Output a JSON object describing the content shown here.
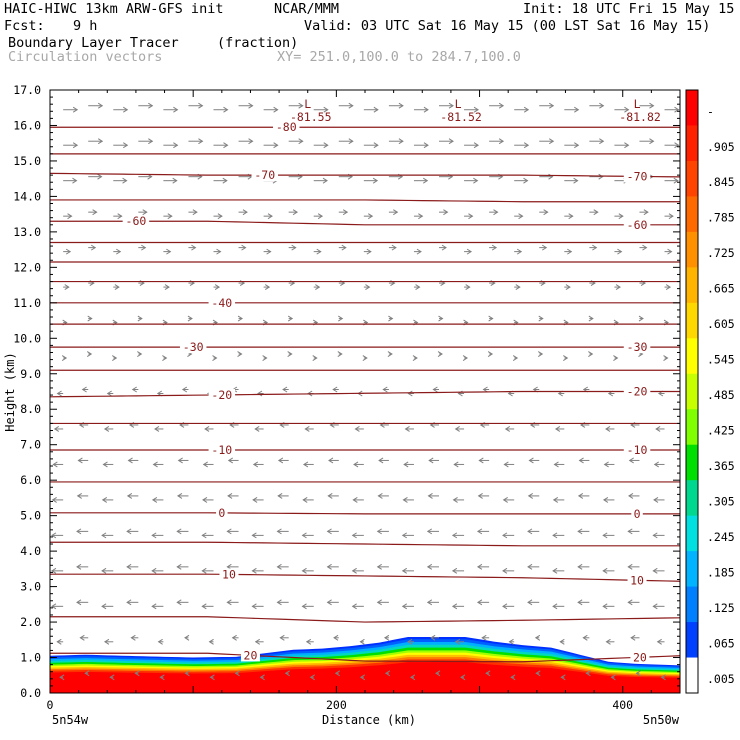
{
  "header": {
    "model": "HAIC-HIWC 13km ARW-GFS init",
    "org": "NCAR/MMM",
    "init": "Init: 18 UTC Fri 15 May 15",
    "fcst_label": "Fcst:",
    "fcst_value": "9 h",
    "valid": "Valid: 03 UTC Sat 16 May 15 (00 LST Sat 16 May 15)",
    "field": "Boundary Layer Tracer",
    "field_unit": "(fraction)",
    "vectors": "Circulation vectors",
    "xy": "XY= 251.0,100.0 to 284.7,100.0"
  },
  "chart_data": {
    "type": "heatmap",
    "ylabel": "Height (km)",
    "xlabel": "Distance (km)",
    "xlim": [
      0,
      440
    ],
    "ylim": [
      0,
      17
    ],
    "y_ticks": [
      "0.0",
      "1.0",
      "2.0",
      "3.0",
      "4.0",
      "5.0",
      "6.0",
      "7.0",
      "8.0",
      "9.0",
      "10.0",
      "11.0",
      "12.0",
      "13.0",
      "14.0",
      "15.0",
      "16.0",
      "17.0"
    ],
    "x_ticks": [
      {
        "value": 0,
        "label": "0"
      },
      {
        "value": 200,
        "label": "200"
      },
      {
        "value": 400,
        "label": "400"
      }
    ],
    "x_end_labels": {
      "left": "5n54w",
      "right": "5n50w"
    },
    "tracer_top_km": [
      [
        0,
        1.05
      ],
      [
        25,
        1.08
      ],
      [
        50,
        1.05
      ],
      [
        100,
        1.0
      ],
      [
        130,
        1.02
      ],
      [
        150,
        1.12
      ],
      [
        170,
        1.22
      ],
      [
        190,
        1.25
      ],
      [
        210,
        1.32
      ],
      [
        230,
        1.42
      ],
      [
        250,
        1.58
      ],
      [
        290,
        1.58
      ],
      [
        310,
        1.45
      ],
      [
        330,
        1.35
      ],
      [
        350,
        1.28
      ],
      [
        370,
        1.08
      ],
      [
        390,
        0.88
      ],
      [
        410,
        0.82
      ],
      [
        440,
        0.78
      ]
    ],
    "temperature_contours": [
      {
        "value": 20,
        "label": "20",
        "y": [
          1.12,
          1.12,
          0.9,
          0.88,
          1.05
        ]
      },
      {
        "value": 15,
        "label": "",
        "y": [
          2.15,
          2.15,
          2.0,
          2.05,
          2.12
        ]
      },
      {
        "value": 10,
        "label": "10",
        "y": [
          3.35,
          3.35,
          3.3,
          3.25,
          3.15
        ]
      },
      {
        "value": 5,
        "label": "",
        "y": [
          4.25,
          4.25,
          4.2,
          4.15,
          4.15
        ]
      },
      {
        "value": 0,
        "label": "0",
        "y": [
          5.08,
          5.08,
          5.05,
          5.05,
          5.05
        ]
      },
      {
        "value": -5,
        "label": "",
        "y": [
          5.95,
          5.95,
          5.95,
          5.95,
          5.95
        ]
      },
      {
        "value": -10,
        "label": "-10",
        "y": [
          6.85,
          6.85,
          6.85,
          6.85,
          6.85
        ]
      },
      {
        "value": -15,
        "label": "",
        "y": [
          7.6,
          7.6,
          7.6,
          7.6,
          7.6
        ]
      },
      {
        "value": -20,
        "label": "-20",
        "y": [
          8.35,
          8.4,
          8.45,
          8.5,
          8.5
        ]
      },
      {
        "value": -25,
        "label": "",
        "y": [
          9.1,
          9.1,
          9.1,
          9.1,
          9.1
        ]
      },
      {
        "value": -30,
        "label": "-30",
        "y": [
          9.75,
          9.75,
          9.75,
          9.75,
          9.75
        ]
      },
      {
        "value": -35,
        "label": "",
        "y": [
          10.4,
          10.4,
          10.4,
          10.4,
          10.4
        ]
      },
      {
        "value": -40,
        "label": "-40",
        "y": [
          11.0,
          11.0,
          11.0,
          11.0,
          11.0
        ]
      },
      {
        "value": -45,
        "label": "",
        "y": [
          11.6,
          11.6,
          11.6,
          11.6,
          11.6
        ]
      },
      {
        "value": -50,
        "label": "",
        "y": [
          12.15,
          12.15,
          12.15,
          12.15,
          12.15
        ]
      },
      {
        "value": -55,
        "label": "",
        "y": [
          12.7,
          12.7,
          12.7,
          12.7,
          12.7
        ]
      },
      {
        "value": -60,
        "label": "-60",
        "y": [
          13.3,
          13.3,
          13.2,
          13.2,
          13.2
        ]
      },
      {
        "value": -65,
        "label": "",
        "y": [
          13.9,
          13.9,
          13.9,
          13.85,
          13.85
        ]
      },
      {
        "value": -70,
        "label": "-70",
        "y": [
          14.65,
          14.6,
          14.6,
          14.6,
          14.55
        ]
      },
      {
        "value": -75,
        "label": "",
        "y": [
          15.2,
          15.2,
          15.2,
          15.2,
          15.2
        ]
      },
      {
        "value": -80,
        "label": "-80",
        "y": [
          15.95,
          15.95,
          15.95,
          15.95,
          15.95
        ]
      }
    ],
    "contour_x": [
      0,
      110,
      220,
      330,
      440
    ],
    "contour_label_x": {
      "20": [
        140,
        412
      ],
      "10": [
        125,
        410
      ],
      "0": [
        120,
        410
      ],
      "-10": [
        120,
        410
      ],
      "-20": [
        120,
        410
      ],
      "-30": [
        100,
        410
      ],
      "-40": [
        120
      ],
      "-60": [
        60,
        410
      ],
      "-70": [
        150,
        410
      ],
      "-80": [
        165
      ]
    },
    "minima": [
      {
        "marker": "L",
        "label": "-81.55",
        "x": 180,
        "y": 16.6
      },
      {
        "marker": "L",
        "label": "-81.52",
        "x": 285,
        "y": 16.6
      },
      {
        "marker": "L",
        "label": "-81.82",
        "x": 410,
        "y": 16.6
      }
    ],
    "colorbar": {
      "labels": [
        "-",
        ".905",
        ".845",
        ".785",
        ".725",
        ".665",
        ".605",
        ".545",
        ".485",
        ".425",
        ".365",
        ".305",
        ".245",
        ".185",
        ".125",
        ".065",
        ".005"
      ],
      "colors": [
        "#ff0000",
        "#ff2200",
        "#ff4400",
        "#ff6a00",
        "#ff9000",
        "#ffb400",
        "#ffd800",
        "#ffff00",
        "#c8ff00",
        "#7fff00",
        "#00e000",
        "#00d890",
        "#00e0e0",
        "#00b4ff",
        "#0080ff",
        "#0040ff",
        "#ffffff"
      ]
    },
    "wind_profile": [
      {
        "z": 16.5,
        "u": 1.0
      },
      {
        "z": 15.5,
        "u": 1.0
      },
      {
        "z": 14.5,
        "u": 0.95
      },
      {
        "z": 13.5,
        "u": 0.6
      },
      {
        "z": 12.5,
        "u": 0.5
      },
      {
        "z": 11.5,
        "u": 0.4
      },
      {
        "z": 10.5,
        "u": 0.25
      },
      {
        "z": 9.5,
        "u": 0.1
      },
      {
        "z": 8.5,
        "u": -0.4
      },
      {
        "z": 7.5,
        "u": -0.6
      },
      {
        "z": 6.5,
        "u": -0.7
      },
      {
        "z": 5.5,
        "u": -0.75
      },
      {
        "z": 4.5,
        "u": -0.8
      },
      {
        "z": 3.5,
        "u": -0.8
      },
      {
        "z": 2.5,
        "u": -0.8
      },
      {
        "z": 1.5,
        "u": -0.6
      },
      {
        "z": 0.5,
        "u": -0.2
      }
    ],
    "grid": false
  }
}
